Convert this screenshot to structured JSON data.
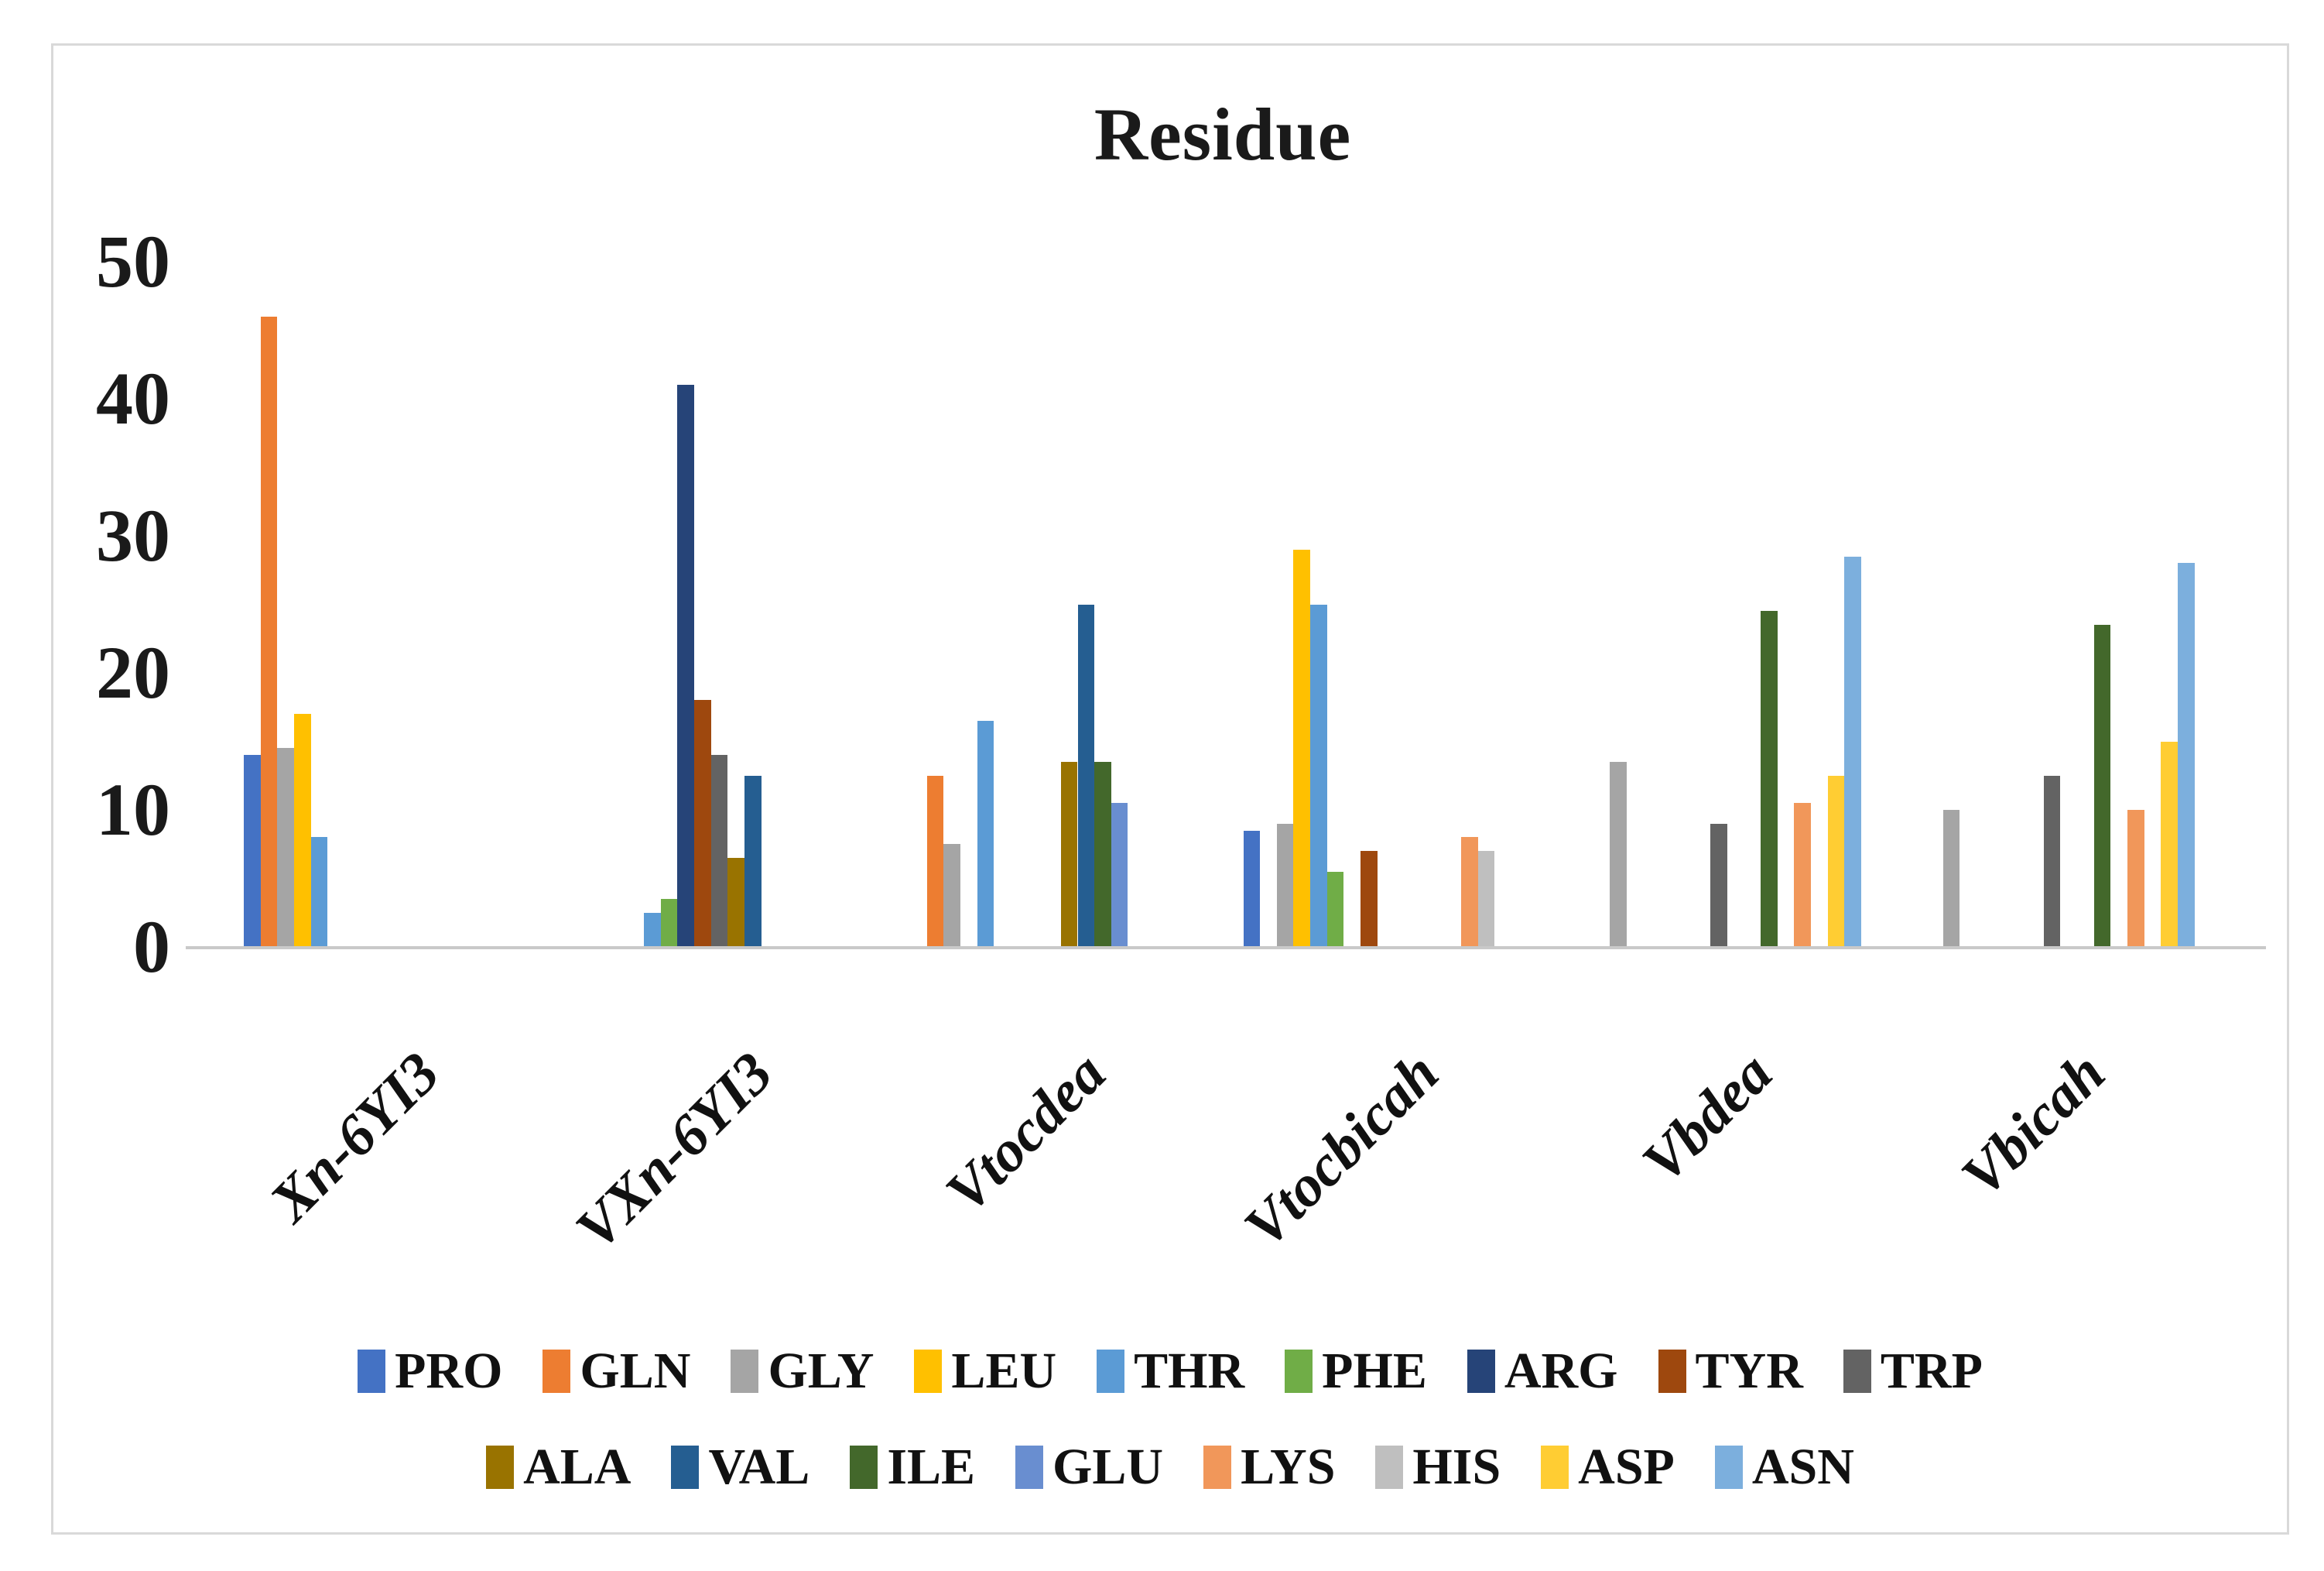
{
  "title": "Residue",
  "chart_data": {
    "type": "bar",
    "title": "Residue",
    "categories": [
      "Xn-6YI3",
      "VXn-6YI3",
      "Vtocdea",
      "Vtocbicah",
      "Vbdea",
      "Vbicah"
    ],
    "y_ticks": [
      "0",
      "10",
      "20",
      "30",
      "40",
      "50"
    ],
    "ylim": [
      0,
      50
    ],
    "grid": false,
    "legend_position": "bottom",
    "series": [
      {
        "name": "PRO",
        "color": "#4472C4",
        "values": [
          14,
          0,
          0,
          8.5,
          0,
          0
        ]
      },
      {
        "name": "GLN",
        "color": "#ED7D31",
        "values": [
          46,
          0,
          12.5,
          0,
          0,
          0
        ]
      },
      {
        "name": "GLY",
        "color": "#A5A5A5",
        "values": [
          14.5,
          0,
          7.5,
          9,
          13.5,
          10
        ]
      },
      {
        "name": "LEU",
        "color": "#FFC000",
        "values": [
          17,
          0,
          0,
          29,
          0,
          0
        ]
      },
      {
        "name": "THR",
        "color": "#5B9BD5",
        "values": [
          8,
          2.5,
          16.5,
          25,
          0,
          0
        ]
      },
      {
        "name": "PHE",
        "color": "#70AD47",
        "values": [
          0,
          3.5,
          0,
          5.5,
          0,
          0
        ]
      },
      {
        "name": "ARG",
        "color": "#264478",
        "values": [
          0,
          41,
          0,
          0,
          0,
          0
        ]
      },
      {
        "name": "TYR",
        "color": "#9E480E",
        "values": [
          0,
          18,
          0,
          7,
          0,
          0
        ]
      },
      {
        "name": "TRP",
        "color": "#636363",
        "values": [
          0,
          14,
          0,
          0,
          9,
          12.5
        ]
      },
      {
        "name": "ALA",
        "color": "#997300",
        "values": [
          0,
          6.5,
          13.5,
          0,
          0,
          0
        ]
      },
      {
        "name": "VAL",
        "color": "#255E91",
        "values": [
          0,
          12.5,
          25,
          0,
          0,
          0
        ]
      },
      {
        "name": "ILE",
        "color": "#43682B",
        "values": [
          0,
          0,
          13.5,
          0,
          24.5,
          23.5
        ]
      },
      {
        "name": "GLU",
        "color": "#698ED0",
        "values": [
          0,
          0,
          10.5,
          0,
          0,
          0
        ]
      },
      {
        "name": "LYS",
        "color": "#F1975A",
        "values": [
          0,
          0,
          0,
          8,
          10.5,
          10
        ]
      },
      {
        "name": "HIS",
        "color": "#BFBFBF",
        "values": [
          0,
          0,
          0,
          7,
          0,
          0
        ]
      },
      {
        "name": "ASP",
        "color": "#FFCD33",
        "values": [
          0,
          0,
          0,
          0,
          12.5,
          15
        ]
      },
      {
        "name": "ASN",
        "color": "#7CAFDD",
        "values": [
          0,
          0,
          0,
          0,
          28.5,
          28
        ]
      }
    ],
    "legend_rows": [
      [
        "PRO",
        "GLN",
        "GLY",
        "LEU",
        "THR",
        "PHE",
        "ARG",
        "TYR",
        "TRP"
      ],
      [
        "ALA",
        "VAL",
        "ILE",
        "GLU",
        "LYS",
        "HIS",
        "ASP",
        "ASN"
      ]
    ]
  }
}
